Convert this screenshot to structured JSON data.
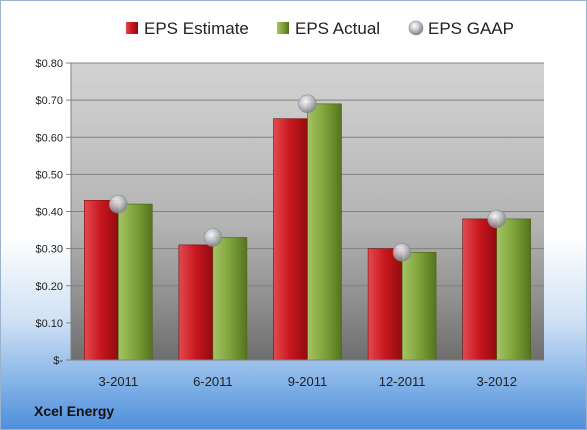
{
  "company_label": "Xcel Energy",
  "colors": {
    "estimate": "#c8161d",
    "actual": "#7ea33a",
    "gaap": "#b8bcc4"
  },
  "chart_data": {
    "type": "bar",
    "categories": [
      "3-2011",
      "6-2011",
      "9-2011",
      "12-2011",
      "3-2012"
    ],
    "series": [
      {
        "name": "EPS Estimate",
        "values": [
          0.43,
          0.31,
          0.65,
          0.3,
          0.38
        ]
      },
      {
        "name": "EPS Actual",
        "values": [
          0.42,
          0.33,
          0.69,
          0.29,
          0.38
        ]
      },
      {
        "name": "EPS GAAP",
        "type": "scatter",
        "values": [
          0.42,
          0.33,
          0.69,
          0.29,
          0.38
        ]
      }
    ],
    "ylim": [
      0,
      0.8
    ],
    "yticks": [
      0,
      0.1,
      0.2,
      0.3,
      0.4,
      0.5,
      0.6,
      0.7,
      0.8
    ],
    "ytick_labels": [
      "$-",
      "$0.10",
      "$0.20",
      "$0.30",
      "$0.40",
      "$0.50",
      "$0.60",
      "$0.70",
      "$0.80"
    ],
    "legend_position": "top",
    "grid": true
  }
}
